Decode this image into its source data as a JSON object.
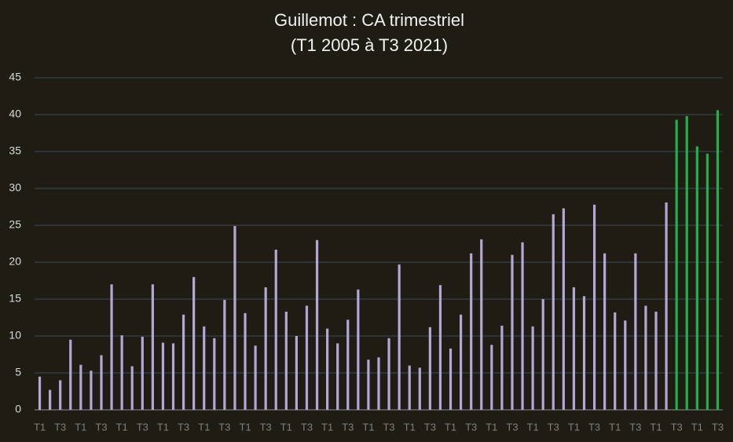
{
  "chart_data": {
    "type": "bar",
    "title": "Guillemot : CA trimestriel",
    "subtitle": "(T1 2005 à T3 2021)",
    "categories": [
      "T1",
      null,
      "T3",
      null,
      "T1",
      null,
      "T3",
      null,
      "T1",
      null,
      "T3",
      null,
      "T1",
      null,
      "T3",
      null,
      "T1",
      null,
      "T3",
      null,
      "T1",
      null,
      "T3",
      null,
      "T1",
      null,
      "T3",
      null,
      "T1",
      null,
      "T3",
      null,
      "T1",
      null,
      "T3",
      null,
      "T1",
      null,
      "T3",
      null,
      "T1",
      null,
      "T3",
      null,
      "T1",
      null,
      "T3",
      null,
      "T1",
      null,
      "T3",
      null,
      "T1",
      null,
      "T3",
      null,
      "T1",
      null,
      "T3",
      null,
      "T1",
      null,
      "T3",
      null,
      "T1",
      null,
      "T3"
    ],
    "values": [
      4.5,
      2.7,
      4.0,
      9.5,
      6.1,
      5.3,
      7.4,
      17.0,
      10.1,
      5.9,
      9.9,
      17.0,
      9.1,
      9.0,
      12.9,
      18.0,
      11.3,
      9.7,
      14.9,
      24.9,
      13.1,
      8.7,
      16.6,
      21.7,
      13.3,
      10.0,
      14.1,
      23.0,
      11.0,
      9.0,
      12.2,
      16.3,
      6.8,
      7.1,
      9.7,
      19.7,
      6.0,
      5.7,
      11.2,
      16.9,
      8.3,
      12.9,
      21.2,
      23.1,
      8.8,
      11.4,
      21.0,
      22.7,
      11.3,
      15.0,
      26.5,
      27.3,
      16.6,
      15.4,
      27.8,
      21.2,
      13.2,
      12.1,
      21.2,
      14.1,
      13.3,
      28.1,
      39.3,
      39.8,
      35.7,
      34.7,
      40.6
    ],
    "colors": [
      "#b4a7d6",
      "#b4a7d6",
      "#b4a7d6",
      "#b4a7d6",
      "#b4a7d6",
      "#b4a7d6",
      "#b4a7d6",
      "#b4a7d6",
      "#b4a7d6",
      "#b4a7d6",
      "#b4a7d6",
      "#b4a7d6",
      "#b4a7d6",
      "#b4a7d6",
      "#b4a7d6",
      "#b4a7d6",
      "#b4a7d6",
      "#b4a7d6",
      "#b4a7d6",
      "#b4a7d6",
      "#b4a7d6",
      "#b4a7d6",
      "#b4a7d6",
      "#b4a7d6",
      "#b4a7d6",
      "#b4a7d6",
      "#b4a7d6",
      "#b4a7d6",
      "#b4a7d6",
      "#b4a7d6",
      "#b4a7d6",
      "#b4a7d6",
      "#b4a7d6",
      "#b4a7d6",
      "#b4a7d6",
      "#b4a7d6",
      "#b4a7d6",
      "#b4a7d6",
      "#b4a7d6",
      "#b4a7d6",
      "#b4a7d6",
      "#b4a7d6",
      "#b4a7d6",
      "#b4a7d6",
      "#b4a7d6",
      "#b4a7d6",
      "#b4a7d6",
      "#b4a7d6",
      "#b4a7d6",
      "#b4a7d6",
      "#b4a7d6",
      "#b4a7d6",
      "#b4a7d6",
      "#b4a7d6",
      "#b4a7d6",
      "#b4a7d6",
      "#b4a7d6",
      "#b4a7d6",
      "#b4a7d6",
      "#b4a7d6",
      "#b4a7d6",
      "#b4a7d6",
      "#1fb24a",
      "#1fb24a",
      "#1fb24a",
      "#1fb24a",
      "#1fb24a"
    ],
    "ylim": [
      0,
      45
    ],
    "yticks": [
      0,
      5,
      10,
      15,
      20,
      25,
      30,
      35,
      40,
      45
    ],
    "grid": true
  }
}
